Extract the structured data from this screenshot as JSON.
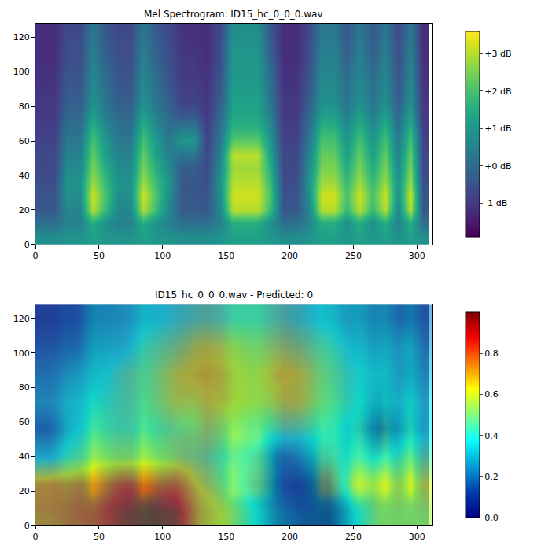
{
  "chart_data": [
    {
      "type": "heatmap",
      "title": "Mel Spectrogram: ID15_hc_0_0_0.wav",
      "color": "viridis",
      "grid": false,
      "xlim": [
        0,
        312
      ],
      "ylim": [
        0,
        128
      ],
      "xticks": [
        0,
        50,
        100,
        150,
        200,
        250,
        300
      ],
      "yticks": [
        0,
        20,
        40,
        60,
        80,
        100,
        120
      ],
      "colorbar_range": [
        -1.9,
        3.6
      ],
      "colorbar_ticks": [
        {
          "value": -1,
          "label": "-1 dB"
        },
        {
          "value": 0,
          "label": "+0 dB"
        },
        {
          "value": 1,
          "label": "+1 dB"
        },
        {
          "value": 2,
          "label": "+2 dB"
        },
        {
          "value": 3,
          "label": "+3 dB"
        }
      ],
      "x": [
        5,
        15,
        25,
        35,
        45,
        55,
        65,
        75,
        85,
        95,
        105,
        115,
        125,
        135,
        145,
        155,
        165,
        175,
        185,
        195,
        205,
        215,
        225,
        235,
        245,
        255,
        265,
        275,
        285,
        295,
        305
      ],
      "y": [
        4,
        12,
        20,
        28,
        36,
        44,
        52,
        60,
        68,
        76,
        84,
        92,
        100,
        108,
        116,
        124
      ],
      "z": [
        [
          0.8,
          0.8,
          0.9,
          0.9,
          1.2,
          1.0,
          0.9,
          0.9,
          1.2,
          1.0,
          0.9,
          0.8,
          0.8,
          0.8,
          0.9,
          1.2,
          1.2,
          1.2,
          1.0,
          0.8,
          0.8,
          0.9,
          1.2,
          1.2,
          1.0,
          1.2,
          1.0,
          1.2,
          0.9,
          1.2,
          0.8
        ],
        [
          0.1,
          0.1,
          0.5,
          0.5,
          1.5,
          0.8,
          0.5,
          0.5,
          1.5,
          0.8,
          0.5,
          0.1,
          0.1,
          0.1,
          0.5,
          1.5,
          1.5,
          1.5,
          0.8,
          0.1,
          0.1,
          0.5,
          1.5,
          1.5,
          0.8,
          1.5,
          0.8,
          1.5,
          0.5,
          1.5,
          0.1
        ],
        [
          -0.4,
          -0.4,
          0.6,
          0.6,
          3.0,
          1.8,
          0.6,
          0.6,
          3.0,
          1.8,
          0.6,
          -0.3,
          -0.3,
          -0.4,
          0.6,
          3.0,
          3.0,
          3.0,
          1.8,
          -0.4,
          -0.4,
          0.6,
          3.0,
          3.0,
          1.8,
          3.0,
          1.8,
          3.0,
          0.6,
          3.0,
          -0.4
        ],
        [
          -0.5,
          -0.5,
          0.8,
          0.8,
          3.2,
          2.0,
          0.8,
          0.8,
          3.2,
          2.0,
          0.8,
          -0.4,
          -0.4,
          -0.5,
          0.8,
          3.2,
          3.2,
          3.2,
          2.0,
          -0.5,
          -0.5,
          0.8,
          3.2,
          3.2,
          2.0,
          3.2,
          2.0,
          3.2,
          0.8,
          3.2,
          -0.5
        ],
        [
          -0.6,
          -0.6,
          0.9,
          0.9,
          2.8,
          1.8,
          0.9,
          0.9,
          2.8,
          1.8,
          0.9,
          -0.4,
          -0.4,
          -0.6,
          0.9,
          3.0,
          3.0,
          3.0,
          1.8,
          -0.6,
          -0.6,
          0.9,
          2.8,
          2.8,
          1.8,
          2.8,
          1.8,
          2.8,
          0.9,
          2.8,
          -0.6
        ],
        [
          -0.7,
          -0.7,
          0.7,
          0.7,
          2.5,
          1.5,
          0.7,
          0.7,
          2.5,
          1.5,
          0.7,
          -0.3,
          -0.3,
          -0.7,
          0.7,
          2.8,
          2.8,
          2.8,
          1.5,
          -0.7,
          -0.7,
          0.7,
          2.5,
          2.5,
          1.5,
          2.5,
          1.5,
          2.5,
          0.7,
          2.5,
          -0.7
        ],
        [
          -0.7,
          -0.7,
          0.5,
          0.5,
          2.3,
          1.2,
          0.5,
          0.5,
          2.3,
          1.2,
          0.5,
          0.2,
          0.2,
          -0.7,
          0.5,
          3.0,
          3.0,
          3.0,
          1.2,
          -0.7,
          -0.7,
          0.5,
          2.3,
          2.3,
          1.2,
          2.3,
          1.2,
          2.3,
          0.5,
          2.3,
          -0.7
        ],
        [
          -0.8,
          -0.8,
          0.3,
          0.3,
          2.0,
          1.0,
          0.3,
          0.3,
          2.0,
          1.0,
          0.3,
          1.0,
          1.0,
          -0.8,
          0.3,
          2.2,
          2.2,
          2.2,
          1.0,
          -0.8,
          -0.8,
          0.3,
          2.0,
          2.0,
          1.0,
          2.0,
          1.0,
          2.0,
          0.3,
          2.0,
          -0.8
        ],
        [
          -0.9,
          -0.9,
          0.1,
          0.1,
          1.6,
          0.7,
          0.1,
          0.1,
          1.6,
          0.7,
          0.1,
          0.3,
          0.3,
          -0.9,
          0.1,
          1.6,
          1.6,
          1.6,
          0.7,
          -0.9,
          -0.9,
          0.1,
          1.6,
          1.6,
          0.7,
          1.6,
          0.7,
          1.6,
          0.1,
          1.6,
          -0.9
        ],
        [
          -1.0,
          -1.0,
          -0.1,
          -0.1,
          1.1,
          0.4,
          -0.1,
          -0.1,
          1.1,
          0.4,
          -0.1,
          -0.5,
          -0.5,
          -1.0,
          -0.1,
          1.3,
          1.3,
          1.3,
          0.4,
          -1.0,
          -1.0,
          -0.1,
          1.1,
          1.1,
          0.4,
          1.1,
          0.4,
          1.1,
          -0.1,
          1.1,
          -1.0
        ],
        [
          -1.0,
          -1.0,
          -0.3,
          -0.3,
          0.8,
          0.2,
          -0.3,
          -0.3,
          0.8,
          0.2,
          -0.3,
          -0.8,
          -0.8,
          -1.0,
          -0.3,
          1.2,
          1.2,
          1.2,
          0.2,
          -1.0,
          -1.0,
          -0.3,
          0.8,
          0.8,
          0.2,
          0.8,
          0.2,
          0.8,
          -0.3,
          0.8,
          -1.0
        ],
        [
          -1.1,
          -1.1,
          -0.4,
          -0.4,
          0.7,
          0.1,
          -0.4,
          -0.4,
          0.7,
          0.1,
          -0.4,
          -0.9,
          -0.9,
          -1.1,
          -0.4,
          1.1,
          1.1,
          1.1,
          0.1,
          -1.1,
          -1.1,
          -0.4,
          0.7,
          0.7,
          0.1,
          0.7,
          0.1,
          0.7,
          -0.4,
          0.7,
          -1.1
        ],
        [
          -1.1,
          -1.1,
          -0.5,
          -0.5,
          0.6,
          0.0,
          -0.5,
          -0.5,
          0.6,
          0.0,
          -0.5,
          -1.0,
          -1.0,
          -1.1,
          -0.5,
          1.0,
          1.0,
          1.0,
          0.0,
          -1.1,
          -1.1,
          -0.5,
          0.6,
          0.6,
          0.0,
          0.6,
          0.0,
          0.6,
          -0.5,
          0.6,
          -1.1
        ],
        [
          -1.2,
          -1.2,
          -0.6,
          -0.6,
          0.5,
          -0.2,
          -0.6,
          -0.6,
          0.5,
          -0.2,
          -0.6,
          -1.0,
          -1.0,
          -1.2,
          -0.6,
          1.0,
          1.0,
          1.0,
          -0.2,
          -1.2,
          -1.2,
          -0.6,
          0.5,
          0.5,
          -0.2,
          0.5,
          -0.2,
          0.5,
          -0.6,
          0.5,
          -1.2
        ],
        [
          -1.2,
          -1.2,
          -0.6,
          -0.6,
          0.4,
          -0.3,
          -0.6,
          -0.6,
          0.4,
          -0.3,
          -0.6,
          -1.1,
          -1.1,
          -1.2,
          -0.6,
          0.9,
          0.9,
          0.9,
          -0.3,
          -1.2,
          -1.2,
          -0.6,
          0.4,
          0.4,
          -0.3,
          0.4,
          -0.3,
          0.4,
          -0.6,
          0.4,
          -1.2
        ],
        [
          -1.2,
          -1.2,
          -0.7,
          -0.7,
          0.3,
          -0.4,
          -0.7,
          -0.7,
          0.3,
          -0.4,
          -0.7,
          -1.1,
          -1.1,
          -1.2,
          -0.7,
          0.8,
          0.8,
          0.8,
          -0.4,
          -1.2,
          -1.2,
          -0.7,
          0.3,
          0.3,
          -0.4,
          0.3,
          -0.4,
          0.3,
          -0.7,
          0.3,
          -1.2
        ]
      ]
    },
    {
      "type": "heatmap",
      "title": "ID15_hc_0_0_0.wav - Predicted: 0",
      "color": "jet",
      "grid": false,
      "xlim": [
        0,
        312
      ],
      "ylim": [
        0,
        128
      ],
      "xticks": [
        0,
        50,
        100,
        150,
        200,
        250,
        300
      ],
      "yticks": [
        0,
        20,
        40,
        60,
        80,
        100,
        120
      ],
      "colorbar_range": [
        0,
        1
      ],
      "colorbar_ticks": [
        {
          "value": 0,
          "label": "0.0"
        },
        0.2,
        0.4,
        0.6,
        0.8
      ],
      "x": [
        10,
        30,
        50,
        70,
        90,
        110,
        130,
        150,
        170,
        190,
        210,
        230,
        250,
        270,
        290,
        310
      ],
      "y": [
        8,
        24,
        40,
        56,
        72,
        88,
        104,
        120
      ],
      "z": [
        [
          0.75,
          0.8,
          0.85,
          0.95,
          1.0,
          0.95,
          0.7,
          0.6,
          0.4,
          0.2,
          0.1,
          0.05,
          0.35,
          0.55,
          0.55,
          0.55
        ],
        [
          0.7,
          0.75,
          0.8,
          0.85,
          0.85,
          0.8,
          0.6,
          0.5,
          0.3,
          0.15,
          0.1,
          0.1,
          0.55,
          0.6,
          0.6,
          0.6
        ],
        [
          0.35,
          0.45,
          0.55,
          0.55,
          0.55,
          0.55,
          0.5,
          0.45,
          0.35,
          0.2,
          0.25,
          0.3,
          0.4,
          0.35,
          0.45,
          0.45
        ],
        [
          0.2,
          0.35,
          0.45,
          0.45,
          0.45,
          0.5,
          0.55,
          0.55,
          0.45,
          0.45,
          0.45,
          0.4,
          0.35,
          0.15,
          0.3,
          0.35
        ],
        [
          0.3,
          0.35,
          0.4,
          0.45,
          0.5,
          0.6,
          0.6,
          0.65,
          0.6,
          0.6,
          0.6,
          0.5,
          0.4,
          0.3,
          0.35,
          0.35
        ],
        [
          0.25,
          0.3,
          0.35,
          0.45,
          0.5,
          0.6,
          0.65,
          0.65,
          0.6,
          0.65,
          0.6,
          0.5,
          0.4,
          0.35,
          0.3,
          0.3
        ],
        [
          0.2,
          0.2,
          0.3,
          0.35,
          0.45,
          0.5,
          0.6,
          0.6,
          0.55,
          0.55,
          0.5,
          0.45,
          0.35,
          0.3,
          0.3,
          0.25
        ],
        [
          0.15,
          0.15,
          0.25,
          0.3,
          0.35,
          0.4,
          0.45,
          0.45,
          0.45,
          0.45,
          0.4,
          0.35,
          0.3,
          0.25,
          0.2,
          0.2
        ]
      ]
    }
  ]
}
